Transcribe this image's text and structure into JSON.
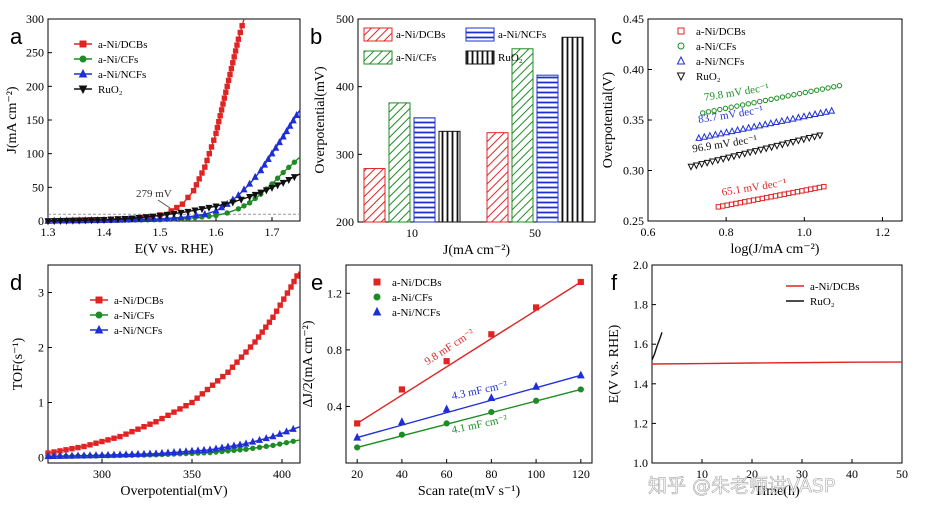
{
  "colors": {
    "red": "#e02424",
    "green": "#1e8c24",
    "blue": "#1f2fd6",
    "black": "#111111",
    "dashed": "#999999",
    "watermark": "#9a9a9a"
  },
  "watermark": "知乎 @朱老师讲VASP",
  "chart_data": [
    {
      "id": "a",
      "letter": "a",
      "type": "line",
      "xlabel": "E(V vs. RHE)",
      "ylabel": "J(mA cm⁻²)",
      "xlim": [
        1.3,
        1.75
      ],
      "ylim": [
        0,
        300
      ],
      "xticks": [
        1.3,
        1.4,
        1.5,
        1.6,
        1.7
      ],
      "xtick_labels": [
        "1.3",
        "1.4",
        "1.5",
        "1.6",
        "1.7"
      ],
      "yticks": [
        0,
        50,
        100,
        150,
        200,
        250,
        300
      ],
      "ytick_labels": [
        "0",
        "50",
        "100",
        "150",
        "200",
        "250",
        "300"
      ],
      "reference_line": 10,
      "annotation": "279 mV",
      "legend": [
        "a-Ni/DCBs",
        "a-Ni/CFs",
        "a-Ni/NCFs",
        "RuO₂"
      ],
      "series": [
        {
          "name": "a-Ni/DCBs",
          "color": "red",
          "marker": "square",
          "x": [
            1.3,
            1.35,
            1.4,
            1.45,
            1.48,
            1.5,
            1.52,
            1.54,
            1.56,
            1.58,
            1.6,
            1.62,
            1.64,
            1.65
          ],
          "y": [
            0,
            1,
            2,
            4,
            6,
            9,
            15,
            25,
            45,
            80,
            130,
            200,
            270,
            300
          ]
        },
        {
          "name": "a-Ni/CFs",
          "color": "green",
          "marker": "circle",
          "x": [
            1.3,
            1.4,
            1.5,
            1.55,
            1.6,
            1.62,
            1.64,
            1.66,
            1.68,
            1.7,
            1.72,
            1.75
          ],
          "y": [
            0,
            1,
            2,
            4,
            8,
            12,
            18,
            27,
            40,
            55,
            72,
            95
          ]
        },
        {
          "name": "a-Ni/NCFs",
          "color": "blue",
          "marker": "triangle",
          "x": [
            1.3,
            1.4,
            1.5,
            1.55,
            1.58,
            1.6,
            1.62,
            1.64,
            1.66,
            1.68,
            1.7,
            1.72,
            1.75
          ],
          "y": [
            0,
            1,
            3,
            6,
            10,
            15,
            25,
            38,
            55,
            75,
            100,
            125,
            165
          ]
        },
        {
          "name": "RuO₂",
          "color": "black",
          "marker": "down-triangle",
          "x": [
            1.3,
            1.4,
            1.45,
            1.5,
            1.55,
            1.6,
            1.63,
            1.66,
            1.69,
            1.72,
            1.75
          ],
          "y": [
            0,
            2,
            4,
            8,
            14,
            22,
            28,
            36,
            46,
            57,
            70
          ]
        }
      ]
    },
    {
      "id": "b",
      "letter": "b",
      "type": "bar",
      "xlabel": "J(mA cm⁻²)",
      "ylabel": "Overpotential(mV)",
      "categories": [
        "10",
        "50"
      ],
      "ylim": [
        200,
        500
      ],
      "yticks": [
        200,
        300,
        400,
        500
      ],
      "ytick_labels": [
        "200",
        "300",
        "400",
        "500"
      ],
      "legend": [
        "a-Ni/DCBs",
        "a-Ni/NCFs",
        "a-Ni/CFs",
        "RuO₂"
      ],
      "series": [
        {
          "name": "a-Ni/DCBs",
          "color": "red",
          "pattern": "diag",
          "values": [
            279,
            332
          ]
        },
        {
          "name": "a-Ni/CFs",
          "color": "green",
          "pattern": "diag",
          "values": [
            376,
            456
          ]
        },
        {
          "name": "a-Ni/NCFs",
          "color": "blue",
          "pattern": "horiz",
          "values": [
            354,
            417
          ]
        },
        {
          "name": "RuO₂",
          "color": "black",
          "pattern": "vert",
          "values": [
            334,
            473
          ]
        }
      ]
    },
    {
      "id": "c",
      "letter": "c",
      "type": "scatter",
      "xlabel": "log(J/mA cm⁻²)",
      "ylabel": "Overpotential(V)",
      "xlim": [
        0.6,
        1.25
      ],
      "ylim": [
        0.25,
        0.45
      ],
      "xticks": [
        0.6,
        0.8,
        1.0,
        1.2
      ],
      "xtick_labels": [
        "0.6",
        "0.8",
        "1.0",
        "1.2"
      ],
      "yticks": [
        0.25,
        0.3,
        0.35,
        0.4,
        0.45
      ],
      "ytick_labels": [
        "0.25",
        "0.30",
        "0.35",
        "0.40",
        "0.45"
      ],
      "legend": [
        "a-Ni/DCBs",
        "a-Ni/CFs",
        "a-Ni/NCFs",
        "RuO₂"
      ],
      "series": [
        {
          "name": "a-Ni/DCBs",
          "color": "red",
          "marker": "open-square",
          "x_start": 0.78,
          "x_end": 1.05,
          "y_start": 0.264,
          "y_end": 0.284
        },
        {
          "name": "a-Ni/CFs",
          "color": "green",
          "marker": "open-circle",
          "x_start": 0.74,
          "x_end": 1.09,
          "y_start": 0.357,
          "y_end": 0.384
        },
        {
          "name": "a-Ni/NCFs",
          "color": "blue",
          "marker": "open-triangle",
          "x_start": 0.73,
          "x_end": 1.07,
          "y_start": 0.332,
          "y_end": 0.359
        },
        {
          "name": "RuO₂",
          "color": "black",
          "marker": "open-down-triangle",
          "x_start": 0.71,
          "x_end": 1.04,
          "y_start": 0.304,
          "y_end": 0.335
        }
      ],
      "annotations": [
        {
          "text": "79.8 mV dec⁻¹",
          "color": "green",
          "x": 0.745,
          "y": 0.369
        },
        {
          "text": "83.7 mV dec⁻¹",
          "color": "blue",
          "x": 0.73,
          "y": 0.347
        },
        {
          "text": "96.9 mV dec⁻¹",
          "color": "black",
          "x": 0.715,
          "y": 0.318
        },
        {
          "text": "65.1 mV dec⁻¹",
          "color": "red",
          "x": 0.79,
          "y": 0.275
        }
      ]
    },
    {
      "id": "d",
      "letter": "d",
      "type": "line",
      "xlabel": "Overpotential(mV)",
      "ylabel": "TOF(s⁻¹)",
      "xlim": [
        270,
        410
      ],
      "ylim": [
        -0.1,
        3.5
      ],
      "xticks": [
        300,
        350,
        400
      ],
      "xtick_labels": [
        "300",
        "350",
        "400"
      ],
      "yticks": [
        0,
        1,
        2,
        3
      ],
      "ytick_labels": [
        "0",
        "1",
        "2",
        "3"
      ],
      "legend": [
        "a-Ni/DCBs",
        "a-Ni/CFs",
        "a-Ni/NCFs"
      ],
      "series": [
        {
          "name": "a-Ni/DCBs",
          "color": "red",
          "marker": "square",
          "x": [
            270,
            290,
            310,
            330,
            350,
            370,
            385,
            395,
            405,
            410
          ],
          "y": [
            0.08,
            0.2,
            0.38,
            0.65,
            1.0,
            1.55,
            2.1,
            2.55,
            3.1,
            3.4
          ]
        },
        {
          "name": "a-Ni/CFs",
          "color": "green",
          "marker": "circle",
          "x": [
            270,
            300,
            330,
            360,
            380,
            395,
            410
          ],
          "y": [
            0.02,
            0.03,
            0.05,
            0.09,
            0.15,
            0.22,
            0.32
          ]
        },
        {
          "name": "a-Ni/NCFs",
          "color": "blue",
          "marker": "triangle",
          "x": [
            270,
            300,
            330,
            360,
            380,
            395,
            410
          ],
          "y": [
            0.02,
            0.04,
            0.07,
            0.14,
            0.25,
            0.38,
            0.56
          ]
        }
      ]
    },
    {
      "id": "e",
      "letter": "e",
      "type": "scatter",
      "xlabel": "Scan rate(mV s⁻¹)",
      "ylabel": "ΔJ/2(mA cm⁻²)",
      "xlim": [
        15,
        125
      ],
      "ylim": [
        0.0,
        1.4
      ],
      "xticks": [
        20,
        40,
        60,
        80,
        100,
        120
      ],
      "xtick_labels": [
        "20",
        "40",
        "60",
        "80",
        "100",
        "120"
      ],
      "yticks": [
        0.4,
        0.8,
        1.2
      ],
      "ytick_labels": [
        "0.4",
        "0.8",
        "1.2"
      ],
      "legend": [
        "a-Ni/DCBs",
        "a-Ni/CFs",
        "a-Ni/NCFs"
      ],
      "series": [
        {
          "name": "a-Ni/DCBs",
          "color": "red",
          "marker": "square",
          "x": [
            20,
            40,
            60,
            80,
            100,
            120
          ],
          "y": [
            0.28,
            0.52,
            0.72,
            0.91,
            1.1,
            1.28
          ]
        },
        {
          "name": "a-Ni/CFs",
          "color": "green",
          "marker": "circle",
          "x": [
            20,
            40,
            60,
            80,
            100,
            120
          ],
          "y": [
            0.11,
            0.2,
            0.28,
            0.36,
            0.44,
            0.52
          ]
        },
        {
          "name": "a-Ni/NCFs",
          "color": "blue",
          "marker": "triangle",
          "x": [
            20,
            40,
            60,
            80,
            100,
            120
          ],
          "y": [
            0.18,
            0.29,
            0.38,
            0.46,
            0.54,
            0.62
          ]
        }
      ],
      "annotations": [
        {
          "text": "9.8 mF cm⁻²",
          "color": "red",
          "x": 62,
          "y": 0.8,
          "angle": -33
        },
        {
          "text": "4.3 mF cm⁻²",
          "color": "blue",
          "x": 75,
          "y": 0.49,
          "angle": -12
        },
        {
          "text": "4.1 mF cm⁻²",
          "color": "green",
          "x": 75,
          "y": 0.25,
          "angle": -12
        }
      ]
    },
    {
      "id": "f",
      "letter": "f",
      "type": "line",
      "xlabel": "Time(h)",
      "ylabel": "E(V vs. RHE)",
      "xlim": [
        0,
        50
      ],
      "ylim": [
        1.0,
        2.0
      ],
      "yticks": [
        1.0,
        1.2,
        1.4,
        1.6,
        1.8,
        2.0
      ],
      "ytick_labels": [
        "1.0",
        "1.2",
        "1.4",
        "1.6",
        "1.8",
        "2.0"
      ],
      "xticks": [
        10,
        20,
        30,
        40,
        50
      ],
      "xtick_labels": [
        "10",
        "20",
        "30",
        "40",
        "50"
      ],
      "legend": [
        "a-Ni/DCBs",
        "RuO₂"
      ],
      "series": [
        {
          "name": "a-Ni/DCBs",
          "color": "red",
          "x": [
            0,
            10,
            20,
            30,
            40,
            50
          ],
          "y": [
            1.5,
            1.502,
            1.505,
            1.507,
            1.509,
            1.51
          ]
        },
        {
          "name": "RuO₂",
          "color": "black",
          "x": [
            0,
            0.5,
            1.0,
            1.6,
            2.0
          ],
          "y": [
            1.52,
            1.55,
            1.59,
            1.63,
            1.66
          ]
        }
      ]
    }
  ]
}
